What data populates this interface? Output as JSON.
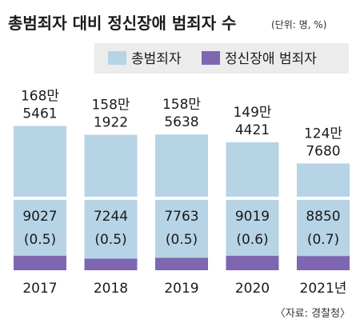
{
  "header": {
    "title": "총범죄자 대비 정신장애 범죄자 수",
    "unit": "(단위: 명, %)"
  },
  "legend": {
    "items": [
      {
        "label": "총범죄자",
        "color": "#b7d3e6"
      },
      {
        "label": "정신장애 범죄자",
        "color": "#7f66b0"
      }
    ]
  },
  "source": "〈자료: 경찰청〉",
  "chart_data": {
    "type": "bar",
    "title": "총범죄자 대비 정신장애 범죄자 수",
    "unit": "(단위: 명, %)",
    "categories": [
      "2017",
      "2018",
      "2019",
      "2020",
      "2021년"
    ],
    "series": [
      {
        "name": "총범죄자",
        "color": "#b7d3e6",
        "values": [
          1685461,
          1581922,
          1585638,
          1494421,
          1247680
        ]
      },
      {
        "name": "정신장애 범죄자",
        "color": "#7f66b0",
        "values": [
          9027,
          7244,
          7763,
          9019,
          8850
        ]
      }
    ],
    "total_labels": [
      [
        "168만",
        "5461"
      ],
      [
        "158만",
        "1922"
      ],
      [
        "158만",
        "5638"
      ],
      [
        "149만",
        "4421"
      ],
      [
        "124만",
        "7680"
      ]
    ],
    "mental_labels": [
      [
        "9027",
        "(0.5)"
      ],
      [
        "7244",
        "(0.5)"
      ],
      [
        "7763",
        "(0.5)"
      ],
      [
        "9019",
        "(0.6)"
      ],
      [
        "8850",
        "(0.7)"
      ]
    ],
    "ratios_percent": [
      0.5,
      0.5,
      0.5,
      0.6,
      0.7
    ],
    "ylim": [
      0,
      1700000
    ],
    "grid": false,
    "legend_position": "top"
  }
}
